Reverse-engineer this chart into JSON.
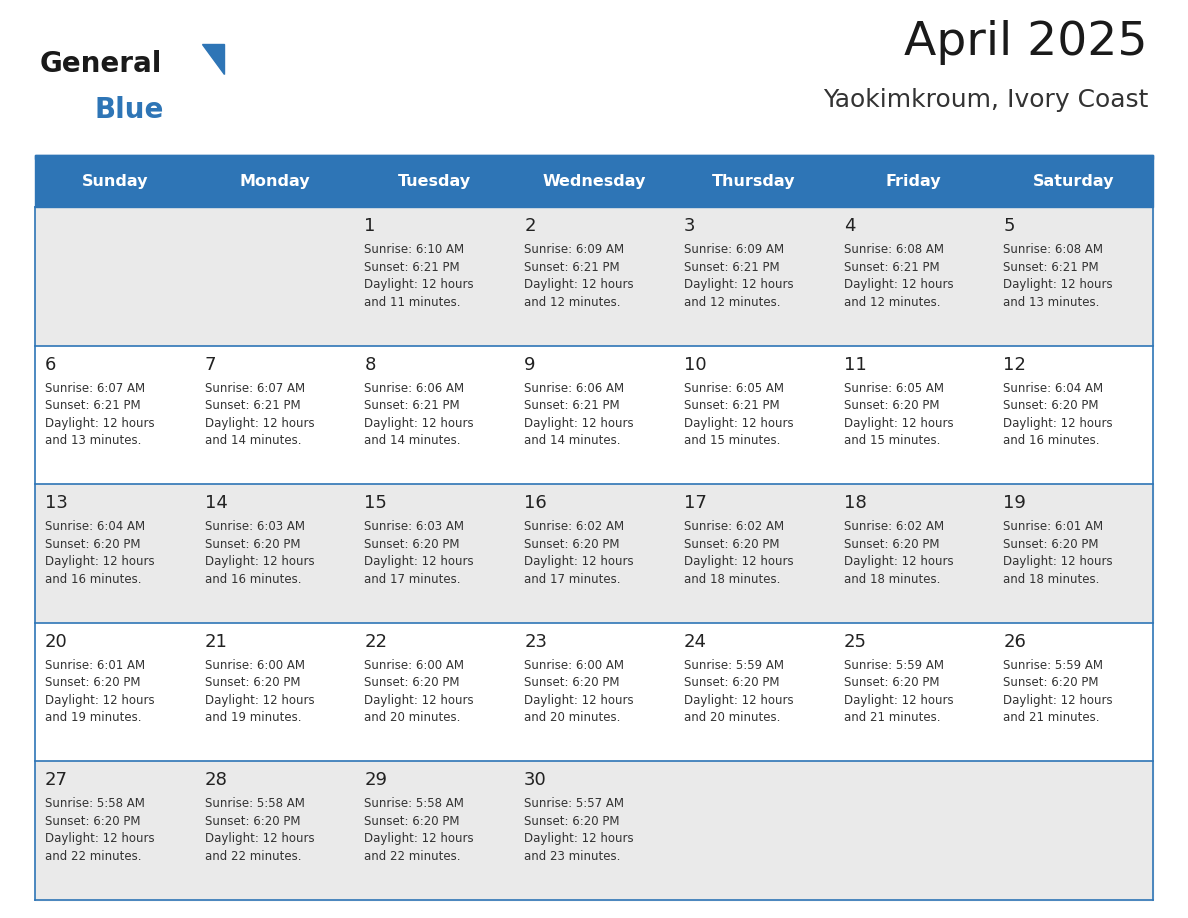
{
  "title": "April 2025",
  "subtitle": "Yaokimkroum, Ivory Coast",
  "header_bg": "#2E75B6",
  "header_text_color": "#FFFFFF",
  "cell_bg_light": "#EAEAEA",
  "cell_bg_white": "#FFFFFF",
  "day_number_color": "#222222",
  "cell_text_color": "#333333",
  "grid_line_color": "#2E75B6",
  "days_of_week": [
    "Sunday",
    "Monday",
    "Tuesday",
    "Wednesday",
    "Thursday",
    "Friday",
    "Saturday"
  ],
  "weeks": [
    [
      {
        "day": "",
        "info": ""
      },
      {
        "day": "",
        "info": ""
      },
      {
        "day": "1",
        "info": "Sunrise: 6:10 AM\nSunset: 6:21 PM\nDaylight: 12 hours\nand 11 minutes."
      },
      {
        "day": "2",
        "info": "Sunrise: 6:09 AM\nSunset: 6:21 PM\nDaylight: 12 hours\nand 12 minutes."
      },
      {
        "day": "3",
        "info": "Sunrise: 6:09 AM\nSunset: 6:21 PM\nDaylight: 12 hours\nand 12 minutes."
      },
      {
        "day": "4",
        "info": "Sunrise: 6:08 AM\nSunset: 6:21 PM\nDaylight: 12 hours\nand 12 minutes."
      },
      {
        "day": "5",
        "info": "Sunrise: 6:08 AM\nSunset: 6:21 PM\nDaylight: 12 hours\nand 13 minutes."
      }
    ],
    [
      {
        "day": "6",
        "info": "Sunrise: 6:07 AM\nSunset: 6:21 PM\nDaylight: 12 hours\nand 13 minutes."
      },
      {
        "day": "7",
        "info": "Sunrise: 6:07 AM\nSunset: 6:21 PM\nDaylight: 12 hours\nand 14 minutes."
      },
      {
        "day": "8",
        "info": "Sunrise: 6:06 AM\nSunset: 6:21 PM\nDaylight: 12 hours\nand 14 minutes."
      },
      {
        "day": "9",
        "info": "Sunrise: 6:06 AM\nSunset: 6:21 PM\nDaylight: 12 hours\nand 14 minutes."
      },
      {
        "day": "10",
        "info": "Sunrise: 6:05 AM\nSunset: 6:21 PM\nDaylight: 12 hours\nand 15 minutes."
      },
      {
        "day": "11",
        "info": "Sunrise: 6:05 AM\nSunset: 6:20 PM\nDaylight: 12 hours\nand 15 minutes."
      },
      {
        "day": "12",
        "info": "Sunrise: 6:04 AM\nSunset: 6:20 PM\nDaylight: 12 hours\nand 16 minutes."
      }
    ],
    [
      {
        "day": "13",
        "info": "Sunrise: 6:04 AM\nSunset: 6:20 PM\nDaylight: 12 hours\nand 16 minutes."
      },
      {
        "day": "14",
        "info": "Sunrise: 6:03 AM\nSunset: 6:20 PM\nDaylight: 12 hours\nand 16 minutes."
      },
      {
        "day": "15",
        "info": "Sunrise: 6:03 AM\nSunset: 6:20 PM\nDaylight: 12 hours\nand 17 minutes."
      },
      {
        "day": "16",
        "info": "Sunrise: 6:02 AM\nSunset: 6:20 PM\nDaylight: 12 hours\nand 17 minutes."
      },
      {
        "day": "17",
        "info": "Sunrise: 6:02 AM\nSunset: 6:20 PM\nDaylight: 12 hours\nand 18 minutes."
      },
      {
        "day": "18",
        "info": "Sunrise: 6:02 AM\nSunset: 6:20 PM\nDaylight: 12 hours\nand 18 minutes."
      },
      {
        "day": "19",
        "info": "Sunrise: 6:01 AM\nSunset: 6:20 PM\nDaylight: 12 hours\nand 18 minutes."
      }
    ],
    [
      {
        "day": "20",
        "info": "Sunrise: 6:01 AM\nSunset: 6:20 PM\nDaylight: 12 hours\nand 19 minutes."
      },
      {
        "day": "21",
        "info": "Sunrise: 6:00 AM\nSunset: 6:20 PM\nDaylight: 12 hours\nand 19 minutes."
      },
      {
        "day": "22",
        "info": "Sunrise: 6:00 AM\nSunset: 6:20 PM\nDaylight: 12 hours\nand 20 minutes."
      },
      {
        "day": "23",
        "info": "Sunrise: 6:00 AM\nSunset: 6:20 PM\nDaylight: 12 hours\nand 20 minutes."
      },
      {
        "day": "24",
        "info": "Sunrise: 5:59 AM\nSunset: 6:20 PM\nDaylight: 12 hours\nand 20 minutes."
      },
      {
        "day": "25",
        "info": "Sunrise: 5:59 AM\nSunset: 6:20 PM\nDaylight: 12 hours\nand 21 minutes."
      },
      {
        "day": "26",
        "info": "Sunrise: 5:59 AM\nSunset: 6:20 PM\nDaylight: 12 hours\nand 21 minutes."
      }
    ],
    [
      {
        "day": "27",
        "info": "Sunrise: 5:58 AM\nSunset: 6:20 PM\nDaylight: 12 hours\nand 22 minutes."
      },
      {
        "day": "28",
        "info": "Sunrise: 5:58 AM\nSunset: 6:20 PM\nDaylight: 12 hours\nand 22 minutes."
      },
      {
        "day": "29",
        "info": "Sunrise: 5:58 AM\nSunset: 6:20 PM\nDaylight: 12 hours\nand 22 minutes."
      },
      {
        "day": "30",
        "info": "Sunrise: 5:57 AM\nSunset: 6:20 PM\nDaylight: 12 hours\nand 23 minutes."
      },
      {
        "day": "",
        "info": ""
      },
      {
        "day": "",
        "info": ""
      },
      {
        "day": "",
        "info": ""
      }
    ]
  ],
  "logo_text1": "General",
  "logo_text2": "Blue",
  "logo_color1": "#1A1A1A",
  "logo_color2": "#2E75B6",
  "fig_width": 11.88,
  "fig_height": 9.18,
  "dpi": 100
}
